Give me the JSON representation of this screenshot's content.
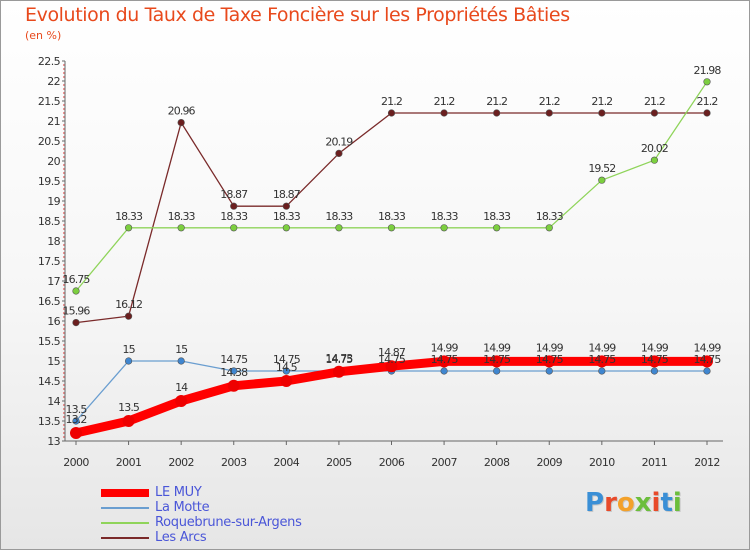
{
  "header": {
    "title": "Evolution du Taux de Taxe Foncière sur les Propriétés Bâties",
    "unit": "(en %)"
  },
  "logo": {
    "text": "Proxiti",
    "letters": [
      {
        "ch": "P",
        "color": "#3a8fd6"
      },
      {
        "ch": "r",
        "color": "#e84a2a"
      },
      {
        "ch": "o",
        "color": "#f3a12a"
      },
      {
        "ch": "x",
        "color": "#6cbe3c"
      },
      {
        "ch": "i",
        "color": "#e84a2a"
      },
      {
        "ch": "t",
        "color": "#3a8fd6"
      },
      {
        "ch": "i",
        "color": "#6cbe3c"
      }
    ]
  },
  "chart_data": {
    "type": "line",
    "title": "Evolution du Taux de Taxe Foncière sur les Propriétés Bâties",
    "ylabel": "(en %)",
    "xlabel": "",
    "ylim": [
      13,
      22.5
    ],
    "ytick_step": 0.5,
    "yticks": [
      "13",
      "13.5",
      "14",
      "14.5",
      "15",
      "15.5",
      "16",
      "16.5",
      "17",
      "17.5",
      "18",
      "18.5",
      "19",
      "19.5",
      "20",
      "20.5",
      "21",
      "21.5",
      "22",
      "22.5"
    ],
    "categories": [
      "2000",
      "2001",
      "2002",
      "2003",
      "2004",
      "2005",
      "2006",
      "2007",
      "2008",
      "2009",
      "2010",
      "2011",
      "2012"
    ],
    "grid": false,
    "legend_position": "bottom-left",
    "series": [
      {
        "name": "Les Arcs",
        "color": "#7a2a2a",
        "marker": "#6b1f1f",
        "values": [
          15.96,
          16.12,
          20.96,
          18.87,
          18.87,
          20.19,
          21.2,
          21.2,
          21.2,
          21.2,
          21.2,
          21.2,
          21.2
        ],
        "labels": [
          "15.96",
          "16.12",
          "20.96",
          "18.87",
          "18.87",
          "20.19",
          "21.2",
          "21.2",
          "21.2",
          "21.2",
          "21.2",
          "21.2",
          "21.2"
        ]
      },
      {
        "name": "Roquebrune-sur-Argens",
        "color": "#8fd45a",
        "marker": "#7ccf3f",
        "values": [
          16.75,
          18.33,
          18.33,
          18.33,
          18.33,
          18.33,
          18.33,
          18.33,
          18.33,
          18.33,
          19.52,
          20.02,
          21.98
        ],
        "labels": [
          "16.75",
          "18.33",
          "18.33",
          "18.33",
          "18.33",
          "18.33",
          "18.33",
          "18.33",
          "18.33",
          "18.33",
          "19.52",
          "20.02",
          "21.98"
        ]
      },
      {
        "name": "La Motte",
        "color": "#6a9ed0",
        "marker": "#3f86d0",
        "values": [
          13.5,
          15,
          15,
          14.75,
          14.75,
          14.75,
          14.75,
          14.75,
          14.75,
          14.75,
          14.75,
          14.75,
          14.75
        ],
        "labels": [
          "13.5",
          "15",
          "15",
          "14.75",
          "14.75",
          "14.75",
          "14.75",
          "14.75",
          "14.75",
          "14.75",
          "14.75",
          "14.75",
          "14.75"
        ]
      },
      {
        "name": "LE MUY",
        "color": "#ff0000",
        "marker": "#ee0000",
        "values": [
          13.2,
          13.5,
          14,
          14.38,
          14.5,
          14.73,
          14.87,
          14.99,
          14.99,
          14.99,
          14.99,
          14.99,
          14.99
        ],
        "labels": [
          "13.2",
          "13.5",
          "14",
          "14.38",
          "14.5",
          "14.73",
          "14.87",
          "14.99",
          "14.99",
          "14.99",
          "14.99",
          "14.99",
          "14.99"
        ]
      }
    ],
    "legend": [
      {
        "name": "LE MUY",
        "color": "#ff0000"
      },
      {
        "name": "La Motte",
        "color": "#6a9ed0"
      },
      {
        "name": "Roquebrune-sur-Argens",
        "color": "#8fd45a"
      },
      {
        "name": "Les Arcs",
        "color": "#7a2a2a"
      }
    ]
  }
}
